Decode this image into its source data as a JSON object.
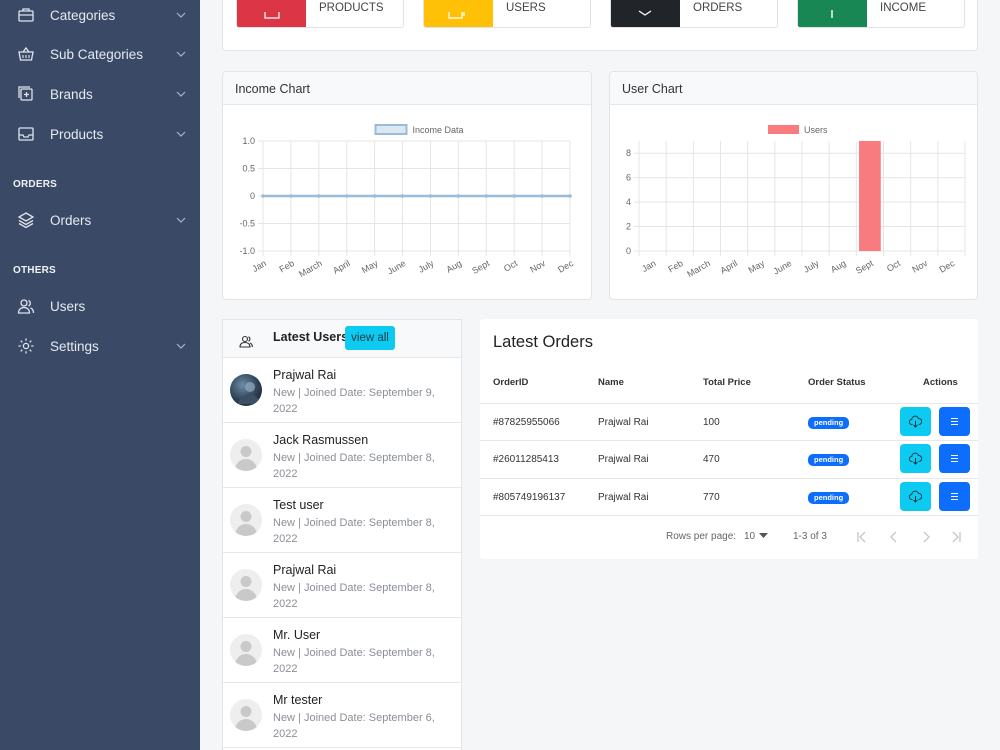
{
  "sidebar": {
    "items": [
      {
        "label": "Categories",
        "icon": "briefcase-icon",
        "chevron": true
      },
      {
        "label": "Sub Categories",
        "icon": "basket-icon",
        "chevron": true
      },
      {
        "label": "Brands",
        "icon": "collection-plus-icon",
        "chevron": true
      },
      {
        "label": "Products",
        "icon": "inbox-icon",
        "chevron": true
      },
      {
        "label": "Orders",
        "icon": "layers-icon",
        "chevron": true
      },
      {
        "label": "Users",
        "icon": "users-icon",
        "chevron": false
      },
      {
        "label": "Settings",
        "icon": "gear-icon",
        "chevron": true
      }
    ],
    "sections": {
      "orders": "ORDERS",
      "others": "OTHERS"
    }
  },
  "stats": [
    {
      "label": "PRODUCTS",
      "color": "#dc3545"
    },
    {
      "label": "USERS",
      "color": "#ffc107"
    },
    {
      "label": "ORDERS",
      "color": "#212529"
    },
    {
      "label": "INCOME",
      "color": "#198754"
    }
  ],
  "income_chart": {
    "header": "Income Chart",
    "chart_data": {
      "type": "line",
      "legend": "Income Data",
      "legend_position": "top",
      "categories": [
        "Jan",
        "Feb",
        "March",
        "April",
        "May",
        "June",
        "July",
        "Aug",
        "Sept",
        "Oct",
        "Nov",
        "Dec"
      ],
      "values": [
        0,
        0,
        0,
        0,
        0,
        0,
        0,
        0,
        0,
        0,
        0,
        0
      ],
      "yticks": [
        "1.0",
        "0.5",
        "0",
        "-0.5",
        "-1.0"
      ],
      "ylim": [
        -1,
        1
      ],
      "grid": true,
      "color": "#9bbcd6"
    }
  },
  "user_chart": {
    "header": "User Chart",
    "chart_data": {
      "type": "bar",
      "legend": "Users",
      "legend_position": "top",
      "categories": [
        "Jan",
        "Feb",
        "March",
        "April",
        "May",
        "June",
        "July",
        "Aug",
        "Sept",
        "Oct",
        "Nov",
        "Dec"
      ],
      "values": [
        0,
        0,
        0,
        0,
        0,
        0,
        0,
        0,
        9,
        0,
        0,
        0
      ],
      "yticks": [
        "8",
        "6",
        "4",
        "2",
        "0"
      ],
      "ylim": [
        0,
        9
      ],
      "grid": true,
      "color": "#f77b7f"
    }
  },
  "latest_users": {
    "title": "Latest Users",
    "view_all": "view all",
    "users": [
      {
        "name": "Prajwal Rai",
        "meta": "New | Joined Date: September 9, 2022",
        "photo": true
      },
      {
        "name": "Jack Rasmussen",
        "meta": "New | Joined Date: September 8, 2022",
        "photo": false
      },
      {
        "name": "Test user",
        "meta": "New | Joined Date: September 8, 2022",
        "photo": false
      },
      {
        "name": "Prajwal Rai",
        "meta": "New | Joined Date: September 8, 2022",
        "photo": false
      },
      {
        "name": "Mr. User",
        "meta": "New | Joined Date: September 8, 2022",
        "photo": false
      },
      {
        "name": "Mr tester",
        "meta": "New | Joined Date: September 6, 2022",
        "photo": false
      }
    ]
  },
  "latest_orders": {
    "title": "Latest Orders",
    "columns": [
      "OrderID",
      "Name",
      "Total Price",
      "Order Status",
      "Actions"
    ],
    "rows": [
      {
        "id": "#87825955066",
        "name": "Prajwal Rai",
        "price": "100",
        "status": "pending"
      },
      {
        "id": "#26011285413",
        "name": "Prajwal Rai",
        "price": "470",
        "status": "pending"
      },
      {
        "id": "#805749196137",
        "name": "Prajwal Rai",
        "price": "770",
        "status": "pending"
      }
    ],
    "pagination": {
      "rows_label": "Rows per page:",
      "rows_value": "10",
      "range": "1-3 of 3"
    }
  }
}
